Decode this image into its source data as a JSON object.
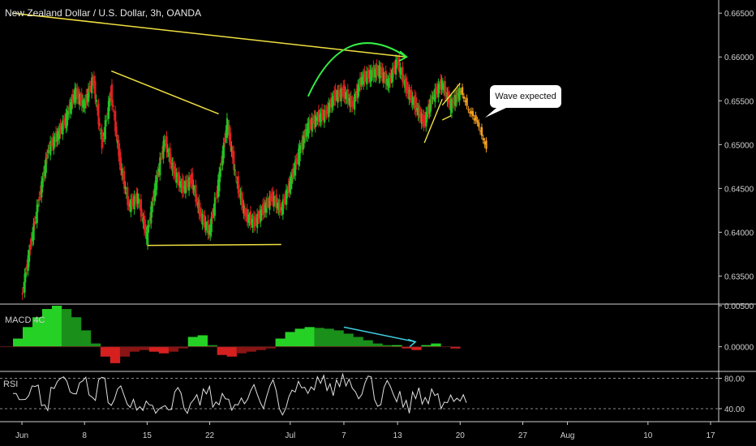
{
  "header": {
    "title": "New Zealand Dollar / U.S. Dollar, 3h, OANDA"
  },
  "annotation": {
    "callout": "Wave expected"
  },
  "indicators": {
    "macd_label": "MACD 4C",
    "rsi_label": "RSI"
  },
  "colors": {
    "background": "#000000",
    "candle_up": "#22c322",
    "candle_down": "#e02020",
    "trendline": "#f0e040",
    "curve_arrow": "#33ee44",
    "projection": "#f5a020",
    "macd_arrow": "#40d0e0",
    "rsi_line": "#e0e0e0"
  },
  "chart_data": [
    {
      "type": "candlestick",
      "title": "New Zealand Dollar / U.S. Dollar, 3h, OANDA",
      "x_tick_labels": [
        "Jun",
        "8",
        "15",
        "22",
        "Jul",
        "7",
        "13",
        "20",
        "27",
        "Aug",
        "10",
        "17"
      ],
      "y_tick_labels": [
        "0.66500",
        "0.66000",
        "0.65500",
        "0.65000",
        "0.64500",
        "0.64000",
        "0.63500"
      ],
      "ylim": [
        0.6318,
        0.6665
      ],
      "xlim": [
        "2020-05-31",
        "2020-08-17"
      ],
      "series": [
        {
          "values": [
            [
              "2020-06-01",
              0.6325
            ],
            [
              "2020-06-02",
              0.6385
            ],
            [
              "2020-06-03",
              0.644
            ],
            [
              "2020-06-04",
              0.6495
            ],
            [
              "2020-06-05",
              0.651
            ],
            [
              "2020-06-06",
              0.653
            ],
            [
              "2020-06-07",
              0.656
            ],
            [
              "2020-06-08",
              0.6545
            ],
            [
              "2020-06-09",
              0.6575
            ],
            [
              "2020-06-10",
              0.65
            ],
            [
              "2020-06-11",
              0.656
            ],
            [
              "2020-06-12",
              0.648
            ],
            [
              "2020-06-13",
              0.643
            ],
            [
              "2020-06-14",
              0.644
            ],
            [
              "2020-06-15",
              0.6395
            ],
            [
              "2020-06-16",
              0.6455
            ],
            [
              "2020-06-17",
              0.6505
            ],
            [
              "2020-06-18",
              0.647
            ],
            [
              "2020-06-19",
              0.645
            ],
            [
              "2020-06-20",
              0.646
            ],
            [
              "2020-06-21",
              0.642
            ],
            [
              "2020-06-22",
              0.64
            ],
            [
              "2020-06-23",
              0.6455
            ],
            [
              "2020-06-24",
              0.6525
            ],
            [
              "2020-06-25",
              0.646
            ],
            [
              "2020-06-26",
              0.642
            ],
            [
              "2020-06-27",
              0.641
            ],
            [
              "2020-06-28",
              0.6425
            ],
            [
              "2020-06-29",
              0.644
            ],
            [
              "2020-06-30",
              0.6425
            ],
            [
              "2020-07-01",
              0.6455
            ],
            [
              "2020-07-02",
              0.649
            ],
            [
              "2020-07-03",
              0.652
            ],
            [
              "2020-07-04",
              0.653
            ],
            [
              "2020-07-05",
              0.6535
            ],
            [
              "2020-07-06",
              0.6555
            ],
            [
              "2020-07-07",
              0.656
            ],
            [
              "2020-07-08",
              0.6545
            ],
            [
              "2020-07-09",
              0.6575
            ],
            [
              "2020-07-10",
              0.658
            ],
            [
              "2020-07-11",
              0.6585
            ],
            [
              "2020-07-12",
              0.657
            ],
            [
              "2020-07-13",
              0.6595
            ],
            [
              "2020-07-14",
              0.6565
            ],
            [
              "2020-07-15",
              0.6545
            ],
            [
              "2020-07-16",
              0.6525
            ],
            [
              "2020-07-17",
              0.6555
            ],
            [
              "2020-07-18",
              0.657
            ],
            [
              "2020-07-19",
              0.6545
            ],
            [
              "2020-07-20",
              0.656
            ]
          ]
        },
        {
          "name": "projection",
          "values": [
            [
              "2020-07-20",
              0.6565
            ],
            [
              "2020-07-21",
              0.654
            ],
            [
              "2020-07-22",
              0.6525
            ],
            [
              "2020-07-23",
              0.6495
            ]
          ]
        }
      ]
    },
    {
      "type": "bar",
      "xlabel": "MACD 4C",
      "y_tick_labels": [
        "0.00500",
        "0.00000"
      ],
      "ylim": [
        -0.003,
        0.0051
      ],
      "values": [
        0.001,
        0.0024,
        0.0036,
        0.0046,
        0.005,
        0.0046,
        0.0036,
        0.002,
        0.0004,
        -0.0012,
        -0.002,
        -0.0012,
        -0.0006,
        -0.0004,
        -0.0006,
        -0.0008,
        -0.0006,
        -0.0002,
        0.0012,
        0.0014,
        0.0002,
        -0.001,
        -0.0012,
        -0.0008,
        -0.0006,
        -0.0004,
        -0.0002,
        0.001,
        0.0018,
        0.0022,
        0.0024,
        0.0023,
        0.0022,
        0.002,
        0.0016,
        0.0012,
        0.0008,
        0.0004,
        0.0002,
        0.0002,
        -0.0002,
        -0.0004,
        0.0002,
        0.0004,
        0.0,
        -0.0002
      ]
    },
    {
      "type": "line",
      "xlabel": "RSI",
      "y_tick_labels": [
        "80.00",
        "40.00"
      ],
      "ylim": [
        25,
        88
      ],
      "values": [
        60,
        52,
        70,
        44,
        68,
        80,
        62,
        74,
        58,
        78,
        48,
        66,
        46,
        38,
        50,
        34,
        44,
        62,
        40,
        52,
        66,
        42,
        60,
        38,
        54,
        64,
        48,
        70,
        40,
        56,
        76,
        60,
        82,
        64,
        78,
        70,
        62,
        74,
        52,
        68,
        58,
        42,
        62,
        46,
        66,
        40,
        58,
        50
      ]
    }
  ]
}
